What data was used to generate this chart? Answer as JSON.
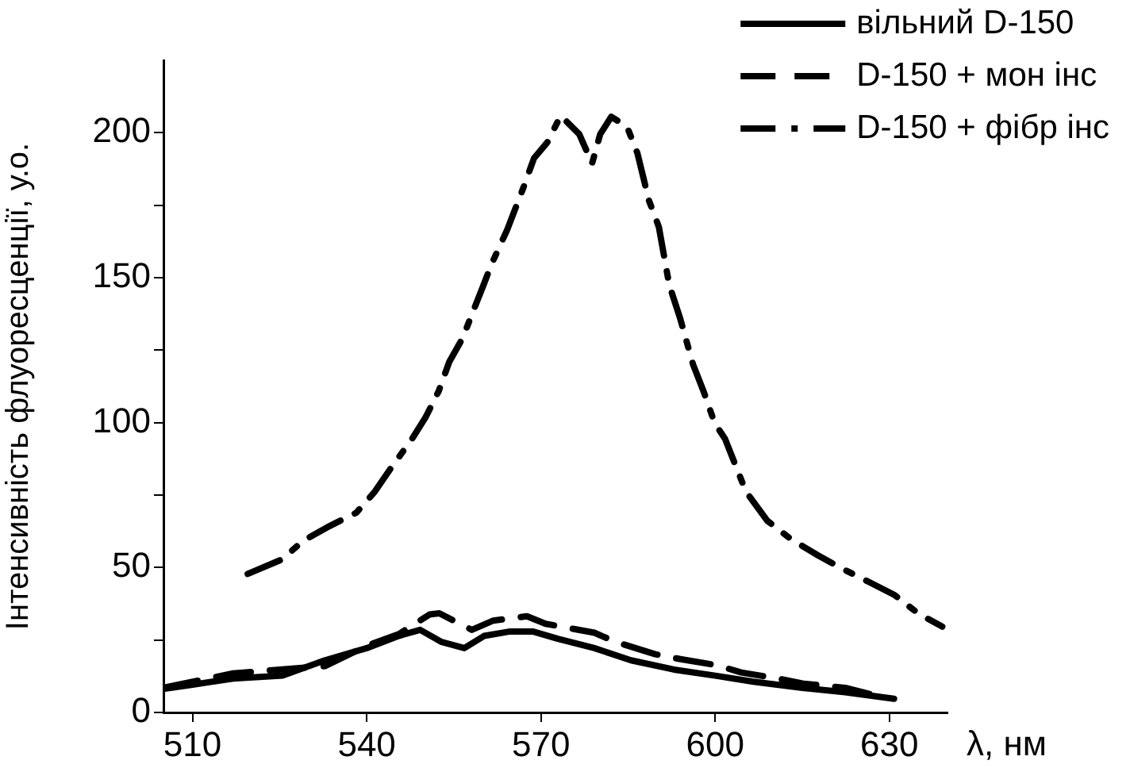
{
  "chart_data": {
    "type": "line",
    "xlabel": "λ, нм",
    "ylabel": "Інтенсивність флуоресценції, у.о.",
    "xlim": [
      505,
      640
    ],
    "xticks": [
      510,
      540,
      570,
      600,
      630
    ],
    "ylim": [
      0,
      225
    ],
    "yticks": [
      0,
      {
        "value": 25,
        "label": null
      },
      50,
      {
        "value": 75,
        "label": null
      },
      100,
      {
        "value": 125,
        "label": null
      },
      150,
      {
        "value": 175,
        "label": null
      },
      200
    ],
    "grid": false,
    "legend": "top right",
    "marker": "none",
    "series": [
      {
        "name": "вільний D-150",
        "color": "#000000",
        "line_style": "solid",
        "x": [
          505,
          510,
          517,
          525.5,
          532.8,
          540,
          545.5,
          549.2,
          552.9,
          556.8,
          560.2,
          564.5,
          568.7,
          572.9,
          579.2,
          585.5,
          592.9,
          600,
          606.6,
          615,
          622.4,
          630.8
        ],
        "values": [
          8.1,
          9.6,
          11.7,
          12.7,
          18,
          22.2,
          26.4,
          28.5,
          24.3,
          22.2,
          26.4,
          27.9,
          27.9,
          25.4,
          22.2,
          18,
          14.8,
          12.7,
          10.6,
          8.5,
          7,
          4.7
        ]
      },
      {
        "name": "D-150 + мон інс",
        "color": "#000000",
        "line_style": "dashed",
        "x": [
          505,
          517,
          532.8,
          540,
          545.5,
          550.8,
          552.5,
          558.1,
          561.8,
          567.6,
          570.8,
          579.2,
          582.9,
          589.7,
          594,
          600.3,
          604.5,
          610.8,
          615,
          622.4,
          626.6
        ],
        "values": [
          8.5,
          13.5,
          16,
          23,
          27,
          33.8,
          34.2,
          28.5,
          31.7,
          33.2,
          30.6,
          27.5,
          24.3,
          20.1,
          18.4,
          16.3,
          13.8,
          11.7,
          10,
          8.5,
          6.4
        ]
      },
      {
        "name": "D-150 + фібр інс",
        "color": "#000000",
        "line_style": "dashdot",
        "x": [
          519.5,
          525.4,
          529.1,
          533.6,
          538.2,
          541.4,
          544.2,
          547.8,
          550.1,
          552.4,
          554.2,
          556.5,
          558.3,
          560.1,
          561.5,
          564.2,
          567,
          568.8,
          571.1,
          573.4,
          576.6,
          578.8,
          580.2,
          582.1,
          584.8,
          586.6,
          588.6,
          590.3,
          592.1,
          593.9,
          596.2,
          598,
          599.9,
          601.7,
          603.5,
          605.3,
          609,
          613.1,
          617.7,
          621.8,
          626.4,
          630.9,
          635,
          639.1
        ],
        "values": [
          47.8,
          52.8,
          59.3,
          64.3,
          68.9,
          76.2,
          84.4,
          94.4,
          101.7,
          110.9,
          120.9,
          129.1,
          138.3,
          147.4,
          154.7,
          166.6,
          181.2,
          191.2,
          196.7,
          205.9,
          199.5,
          189.4,
          199.5,
          205.5,
          202.2,
          193,
          176.6,
          167.5,
          147.4,
          136.4,
          120,
          110.8,
          99.9,
          94.4,
          85.3,
          76.2,
          66.1,
          59.7,
          54.2,
          49.7,
          45.1,
          40.5,
          34.1,
          29.6
        ]
      }
    ]
  }
}
